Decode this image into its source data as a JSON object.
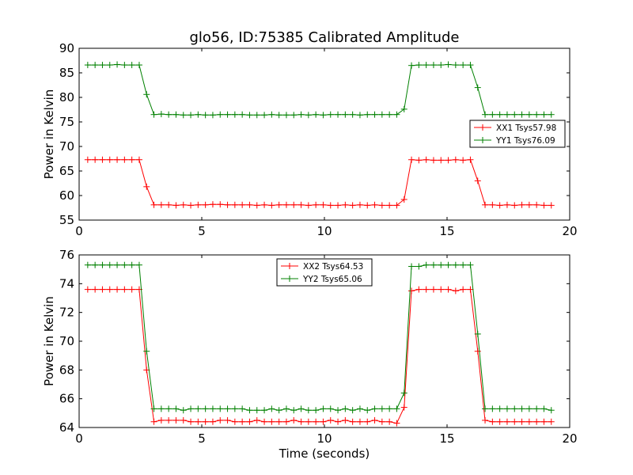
{
  "figure": {
    "title": "glo56, ID:75385 Calibrated Amplitude"
  },
  "chart_data": [
    {
      "type": "line",
      "title": "glo56, ID:75385 Calibrated Amplitude",
      "xlabel": "",
      "ylabel": "Power in Kelvin",
      "xlim": [
        0,
        20
      ],
      "ylim": [
        55,
        90
      ],
      "xticks": [
        "0",
        "5",
        "10",
        "15",
        "20"
      ],
      "yticks": [
        "55",
        "60",
        "65",
        "70",
        "75",
        "80",
        "85",
        "90"
      ],
      "grid": false,
      "legend_position": "right",
      "x": [
        0.35,
        0.65,
        0.95,
        1.25,
        1.55,
        1.85,
        2.15,
        2.45,
        2.75,
        3.05,
        3.35,
        3.65,
        3.95,
        4.25,
        4.55,
        4.85,
        5.15,
        5.45,
        5.75,
        6.05,
        6.35,
        6.65,
        6.95,
        7.25,
        7.55,
        7.85,
        8.15,
        8.45,
        8.75,
        9.05,
        9.35,
        9.65,
        9.95,
        10.25,
        10.55,
        10.85,
        11.15,
        11.45,
        11.75,
        12.05,
        12.35,
        12.65,
        12.95,
        13.25,
        13.55,
        13.85,
        14.15,
        14.45,
        14.75,
        15.05,
        15.35,
        15.65,
        15.95,
        16.25,
        16.55,
        16.85,
        17.15,
        17.45,
        17.75,
        18.05,
        18.35,
        18.65,
        18.95,
        19.25
      ],
      "series": [
        {
          "name": "XX1 Tsys57.98",
          "color": "#ff0000",
          "values": [
            67.3,
            67.3,
            67.3,
            67.3,
            67.3,
            67.3,
            67.3,
            67.3,
            61.8,
            58.1,
            58.1,
            58.1,
            58.0,
            58.1,
            58.0,
            58.1,
            58.1,
            58.2,
            58.2,
            58.1,
            58.1,
            58.1,
            58.1,
            58.0,
            58.1,
            58.0,
            58.1,
            58.1,
            58.1,
            58.1,
            58.0,
            58.1,
            58.1,
            58.0,
            58.0,
            58.1,
            58.0,
            58.1,
            58.0,
            58.1,
            58.0,
            58.0,
            58.0,
            59.2,
            67.3,
            67.2,
            67.3,
            67.2,
            67.2,
            67.2,
            67.3,
            67.2,
            67.3,
            63.0,
            58.1,
            58.1,
            58.0,
            58.1,
            58.0,
            58.1,
            58.1,
            58.1,
            58.0,
            58.0
          ]
        },
        {
          "name": "YY1 Tsys76.09",
          "color": "#008000",
          "values": [
            86.6,
            86.6,
            86.6,
            86.6,
            86.7,
            86.6,
            86.6,
            86.6,
            80.6,
            76.5,
            76.6,
            76.5,
            76.5,
            76.4,
            76.4,
            76.5,
            76.4,
            76.4,
            76.5,
            76.5,
            76.5,
            76.5,
            76.4,
            76.4,
            76.4,
            76.5,
            76.4,
            76.4,
            76.4,
            76.5,
            76.4,
            76.5,
            76.4,
            76.5,
            76.5,
            76.5,
            76.5,
            76.4,
            76.5,
            76.5,
            76.5,
            76.5,
            76.5,
            77.6,
            86.5,
            86.6,
            86.6,
            86.6,
            86.6,
            86.7,
            86.6,
            86.6,
            86.6,
            82.0,
            76.5,
            76.5,
            76.5,
            76.5,
            76.5,
            76.5,
            76.5,
            76.5,
            76.5,
            76.5
          ]
        }
      ]
    },
    {
      "type": "line",
      "title": "",
      "xlabel": "Time (seconds)",
      "ylabel": "Power in Kelvin",
      "xlim": [
        0,
        20
      ],
      "ylim": [
        64,
        76
      ],
      "xticks": [
        "0",
        "5",
        "10",
        "15",
        "20"
      ],
      "yticks": [
        "64",
        "66",
        "68",
        "70",
        "72",
        "74",
        "76"
      ],
      "grid": false,
      "legend_position": "top-center",
      "x": [
        0.35,
        0.65,
        0.95,
        1.25,
        1.55,
        1.85,
        2.15,
        2.45,
        2.75,
        3.05,
        3.35,
        3.65,
        3.95,
        4.25,
        4.55,
        4.85,
        5.15,
        5.45,
        5.75,
        6.05,
        6.35,
        6.65,
        6.95,
        7.25,
        7.55,
        7.85,
        8.15,
        8.45,
        8.75,
        9.05,
        9.35,
        9.65,
        9.95,
        10.25,
        10.55,
        10.85,
        11.15,
        11.45,
        11.75,
        12.05,
        12.35,
        12.65,
        12.95,
        13.25,
        13.55,
        13.85,
        14.15,
        14.45,
        14.75,
        15.05,
        15.35,
        15.65,
        15.95,
        16.25,
        16.55,
        16.85,
        17.15,
        17.45,
        17.75,
        18.05,
        18.35,
        18.65,
        18.95,
        19.25
      ],
      "series": [
        {
          "name": "XX2 Tsys64.53",
          "color": "#ff0000",
          "values": [
            73.6,
            73.6,
            73.6,
            73.6,
            73.6,
            73.6,
            73.6,
            73.6,
            68.0,
            64.4,
            64.5,
            64.5,
            64.5,
            64.5,
            64.4,
            64.4,
            64.4,
            64.4,
            64.5,
            64.5,
            64.4,
            64.4,
            64.4,
            64.5,
            64.4,
            64.4,
            64.4,
            64.4,
            64.5,
            64.4,
            64.4,
            64.4,
            64.4,
            64.5,
            64.4,
            64.5,
            64.4,
            64.4,
            64.4,
            64.5,
            64.4,
            64.4,
            64.3,
            65.4,
            73.5,
            73.6,
            73.6,
            73.6,
            73.6,
            73.6,
            73.5,
            73.6,
            73.6,
            69.3,
            64.5,
            64.4,
            64.4,
            64.4,
            64.4,
            64.4,
            64.4,
            64.4,
            64.4,
            64.4
          ]
        },
        {
          "name": "YY2 Tsys65.06",
          "color": "#008000",
          "values": [
            75.3,
            75.3,
            75.3,
            75.3,
            75.3,
            75.3,
            75.3,
            75.3,
            69.3,
            65.3,
            65.3,
            65.3,
            65.3,
            65.2,
            65.3,
            65.3,
            65.3,
            65.3,
            65.3,
            65.3,
            65.3,
            65.3,
            65.2,
            65.2,
            65.2,
            65.3,
            65.2,
            65.3,
            65.2,
            65.3,
            65.2,
            65.2,
            65.3,
            65.3,
            65.2,
            65.3,
            65.2,
            65.3,
            65.2,
            65.3,
            65.3,
            65.3,
            65.3,
            66.4,
            75.2,
            75.2,
            75.3,
            75.3,
            75.3,
            75.3,
            75.3,
            75.3,
            75.3,
            70.5,
            65.3,
            65.3,
            65.3,
            65.3,
            65.3,
            65.3,
            65.3,
            65.3,
            65.3,
            65.2
          ]
        }
      ]
    }
  ]
}
